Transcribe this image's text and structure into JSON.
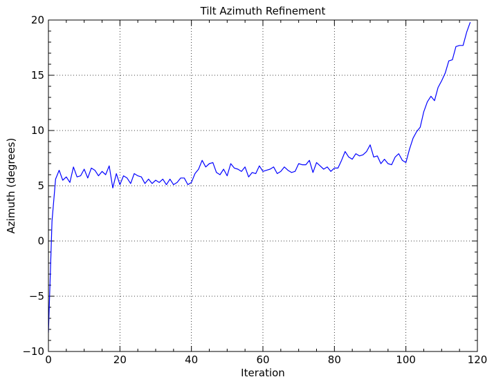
{
  "chart_data": {
    "type": "line",
    "title": "Tilt Azimuth Refinement",
    "xlabel": "Iteration",
    "ylabel": "Azimuth (degrees)",
    "xlim": [
      0,
      120
    ],
    "ylim": [
      -10,
      20
    ],
    "x_ticks": [
      0,
      20,
      40,
      60,
      80,
      100,
      120
    ],
    "y_ticks": [
      -10,
      -5,
      0,
      5,
      10,
      15,
      20
    ],
    "x_tick_labels": [
      "0",
      "20",
      "40",
      "60",
      "80",
      "100",
      "120"
    ],
    "y_tick_labels": [
      "−10",
      "−5",
      "0",
      "5",
      "10",
      "15",
      "20"
    ],
    "grid": true,
    "grid_style": "dotted",
    "line_color": "#0000ff",
    "series": [
      {
        "x": [
          0,
          1,
          2,
          3,
          4,
          5,
          6,
          7,
          8,
          9,
          10,
          11,
          12,
          13,
          14,
          15,
          16,
          17,
          18,
          19,
          20,
          21,
          22,
          23,
          24,
          25,
          26,
          27,
          28,
          29,
          30,
          31,
          32,
          33,
          34,
          35,
          36,
          37,
          38,
          39,
          40,
          41,
          42,
          43,
          44,
          45,
          46,
          47,
          48,
          49,
          50,
          51,
          52,
          53,
          54,
          55,
          56,
          57,
          58,
          59,
          60,
          61,
          62,
          63,
          64,
          65,
          66,
          67,
          68,
          69,
          70,
          71,
          72,
          73,
          74,
          75,
          76,
          77,
          78,
          79,
          80,
          81,
          82,
          83,
          84,
          85,
          86,
          87,
          88,
          89,
          90,
          91,
          92,
          93,
          94,
          95,
          96,
          97,
          98,
          99,
          100,
          101,
          102,
          103,
          104,
          105,
          106,
          107,
          108,
          109,
          110,
          111,
          112,
          113,
          114,
          115,
          116,
          117,
          118
        ],
        "values": [
          -8.3,
          1.8,
          5.6,
          6.4,
          5.5,
          5.8,
          5.3,
          6.7,
          5.8,
          5.9,
          6.5,
          5.7,
          6.6,
          6.4,
          5.9,
          6.3,
          6.0,
          6.8,
          4.8,
          6.1,
          5.1,
          5.9,
          5.7,
          5.2,
          6.1,
          5.9,
          5.8,
          5.2,
          5.6,
          5.2,
          5.5,
          5.3,
          5.6,
          5.1,
          5.6,
          5.1,
          5.3,
          5.7,
          5.7,
          5.1,
          5.3,
          6.1,
          6.5,
          7.3,
          6.7,
          7.0,
          7.1,
          6.2,
          6.0,
          6.5,
          5.9,
          7.0,
          6.6,
          6.5,
          6.3,
          6.7,
          5.8,
          6.2,
          6.1,
          6.8,
          6.3,
          6.4,
          6.5,
          6.7,
          6.1,
          6.3,
          6.7,
          6.4,
          6.2,
          6.3,
          7.0,
          6.9,
          6.9,
          7.3,
          6.2,
          7.1,
          6.8,
          6.5,
          6.7,
          6.3,
          6.6,
          6.6,
          7.3,
          8.1,
          7.6,
          7.4,
          7.9,
          7.7,
          7.8,
          8.1,
          8.7,
          7.6,
          7.7,
          7.0,
          7.4,
          7.0,
          6.9,
          7.6,
          7.9,
          7.3,
          7.1,
          8.3,
          9.3,
          9.9,
          10.3,
          11.7,
          12.6,
          13.1,
          12.7,
          13.9,
          14.5,
          15.2,
          16.3,
          16.4,
          17.6,
          17.7,
          17.7,
          18.9,
          19.8
        ]
      }
    ]
  }
}
